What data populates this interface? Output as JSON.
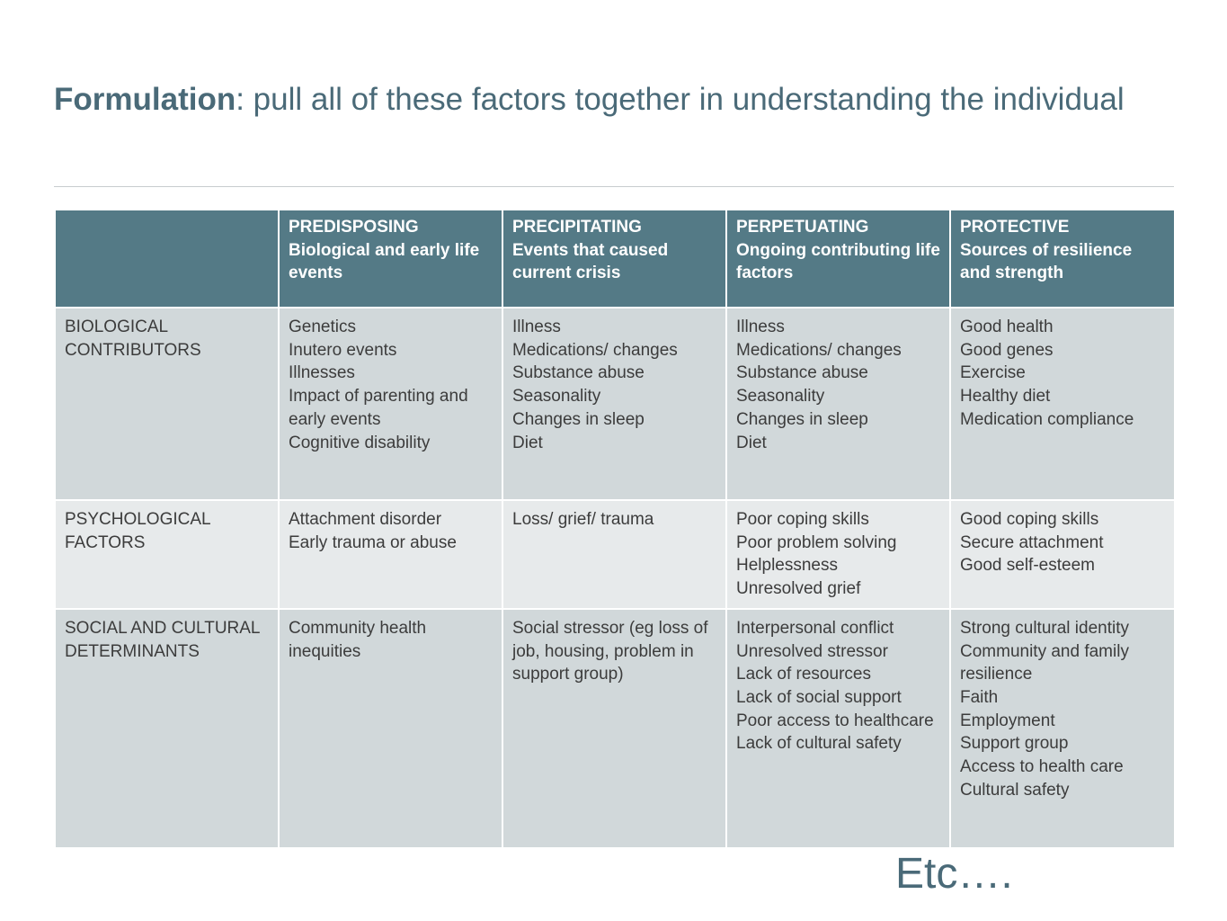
{
  "title": {
    "bold": "Formulation",
    "rest": ": pull all of these factors together in understanding the individual"
  },
  "table": {
    "header": [
      {
        "title": "",
        "subtitle": ""
      },
      {
        "title": "PREDISPOSING",
        "subtitle": "Biological and early life events"
      },
      {
        "title": "PRECIPITATING",
        "subtitle": "Events that caused current crisis"
      },
      {
        "title": "PERPETUATING",
        "subtitle": "Ongoing contributing life factors"
      },
      {
        "title": "PROTECTIVE",
        "subtitle": "Sources of resilience and strength"
      }
    ],
    "rows": [
      {
        "label": "BIOLOGICAL CONTRIBUTORS",
        "cells": [
          [
            "Genetics",
            "Inutero events",
            "Illnesses",
            "Impact of parenting and early events",
            "Cognitive disability"
          ],
          [
            "Illness",
            "Medications/ changes",
            "Substance abuse",
            "Seasonality",
            "Changes in sleep",
            "Diet"
          ],
          [
            "Illness",
            "Medications/ changes",
            "Substance abuse",
            "Seasonality",
            "Changes in sleep",
            "Diet"
          ],
          [
            "Good health",
            "Good genes",
            "Exercise",
            "Healthy diet",
            "Medication compliance"
          ]
        ]
      },
      {
        "label": "PSYCHOLOGICAL FACTORS",
        "cells": [
          [
            "Attachment disorder",
            "Early trauma or abuse"
          ],
          [
            "Loss/ grief/ trauma"
          ],
          [
            "Poor coping skills",
            "Poor problem solving",
            "Helplessness",
            "Unresolved grief"
          ],
          [
            "Good coping skills",
            "Secure attachment",
            "Good self-esteem"
          ]
        ]
      },
      {
        "label": "SOCIAL AND CULTURAL DETERMINANTS",
        "cells": [
          [
            "Community health inequities"
          ],
          [
            "Social stressor (eg loss of job, housing, problem in support group)"
          ],
          [
            "Interpersonal conflict",
            "Unresolved stressor",
            "Lack of resources",
            "Lack of social support",
            "Poor access to healthcare",
            "Lack of cultural safety"
          ],
          [
            "Strong cultural identity",
            "Community and family resilience",
            "Faith",
            "Employment",
            "Support group",
            "Access to health care",
            "Cultural safety"
          ]
        ]
      }
    ]
  },
  "footer": {
    "etc": "Etc…."
  },
  "colors": {
    "header_bg": "#547a86",
    "title_text": "#4a6a78",
    "row_dark": "#d1d8da",
    "row_light": "#e7eaeb"
  }
}
